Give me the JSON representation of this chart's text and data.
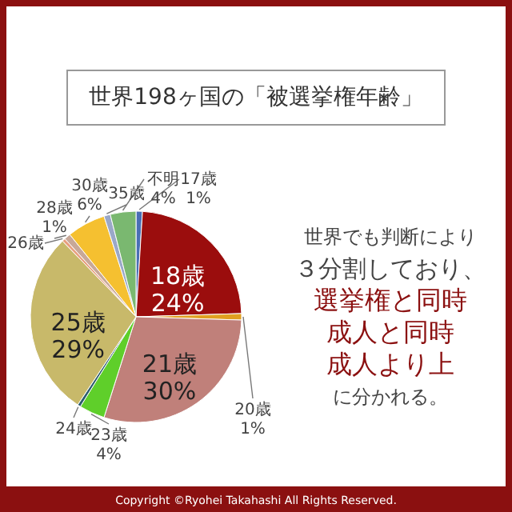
{
  "chart_data": {
    "type": "pie",
    "title": "世界198ヶ国の「被選挙権年齢」",
    "categories": [
      "17歳",
      "18歳",
      "20歳",
      "21歳",
      "23歳",
      "24歳",
      "25歳",
      "26歳",
      "28歳",
      "30歳",
      "35歳",
      "不明"
    ],
    "values": [
      1,
      24,
      1,
      30,
      4,
      0.5,
      29,
      0.5,
      1,
      6,
      1,
      4
    ],
    "value_labels": [
      "1%",
      "24%",
      "1%",
      "30%",
      "4%",
      null,
      "29%",
      null,
      "1%",
      "6%",
      null,
      "4%"
    ],
    "colors": [
      "#4a6fb5",
      "#9b0d0d",
      "#e0a020",
      "#c0807a",
      "#5fcf2a",
      "#2e5e6e",
      "#c8b96a",
      "#e8a080",
      "#c8a898",
      "#f5c030",
      "#9aa8c8",
      "#7ab870"
    ],
    "annotations": [
      "世界でも判断により",
      "３分割しており、",
      "選挙権と同時",
      "成人と同時",
      "成人より上",
      "に分かれる。",
      "Copyright ©Ryohei Takahashi All Rights Reserved."
    ]
  }
}
